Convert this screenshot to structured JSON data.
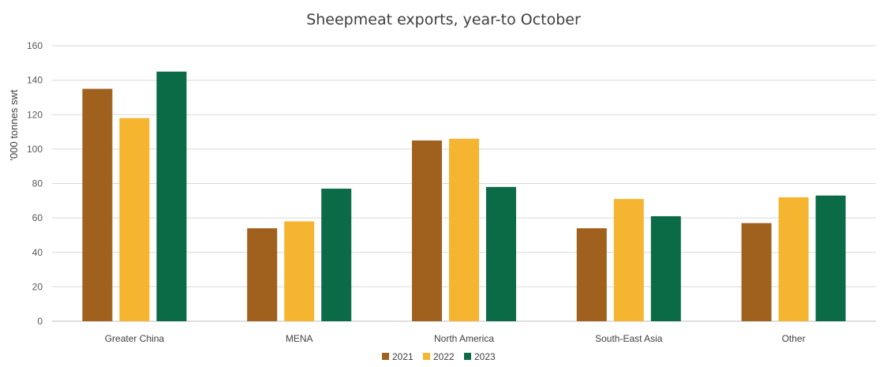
{
  "chart_data": {
    "type": "bar",
    "title": "Sheepmeat exports, year-to October",
    "xlabel": "",
    "ylabel": "'000 tonnes swt",
    "ylim": [
      0,
      160
    ],
    "yticks": [
      0,
      20,
      40,
      60,
      80,
      100,
      120,
      140,
      160
    ],
    "grid": true,
    "legend_position": "bottom",
    "categories": [
      "Greater China",
      "MENA",
      "North America",
      "South-East Asia",
      "Other"
    ],
    "series": [
      {
        "name": "2021",
        "color": "#A0611E",
        "values": [
          135,
          54,
          105,
          54,
          57
        ]
      },
      {
        "name": "2022",
        "color": "#F6B530",
        "values": [
          118,
          58,
          106,
          71,
          72
        ]
      },
      {
        "name": "2023",
        "color": "#0B6B47",
        "values": [
          145,
          77,
          78,
          61,
          73
        ]
      }
    ]
  }
}
